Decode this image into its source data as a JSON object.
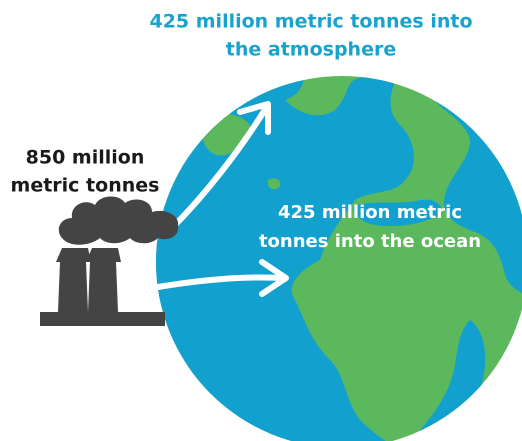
{
  "labels": {
    "atmosphere": [
      "425 million metric tonnes into",
      "the atmosphere"
    ],
    "emissions": [
      "850 million",
      "metric tonnes"
    ],
    "ocean": [
      "425 million metric",
      "tonnes into the ocean"
    ]
  }
}
